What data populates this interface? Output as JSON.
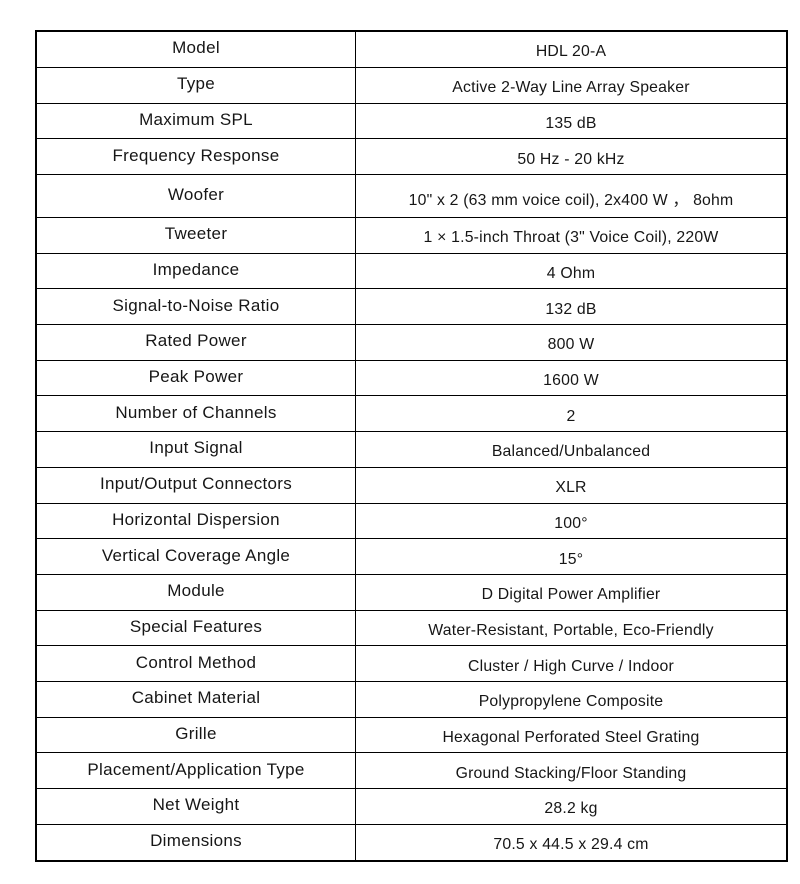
{
  "page": {
    "background": "#ffffff",
    "text_color": "#161616",
    "border_color": "#000000"
  },
  "table": {
    "columns": [
      "label",
      "value"
    ],
    "rows": [
      {
        "label": "Model",
        "value": "HDL 20-A"
      },
      {
        "label": "Type",
        "value": "Active 2-Way Line Array Speaker"
      },
      {
        "label": "Maximum SPL",
        "value": "135 dB"
      },
      {
        "label": "Frequency Response",
        "value": "50 Hz - 20 kHz"
      },
      {
        "label": "Woofer",
        "value": "10\" x 2 (63 mm voice coil), 2x400 W ， 8ohm"
      },
      {
        "label": "Tweeter",
        "value": "1 × 1.5-inch Throat (3\" Voice Coil), 220W"
      },
      {
        "label": "Impedance",
        "value": "4 Ohm"
      },
      {
        "label": "Signal-to-Noise Ratio",
        "value": "132 dB"
      },
      {
        "label": "Rated Power",
        "value": "800 W"
      },
      {
        "label": "Peak Power",
        "value": "1600 W"
      },
      {
        "label": "Number of Channels",
        "value": "2"
      },
      {
        "label": "Input Signal",
        "value": "Balanced/Unbalanced"
      },
      {
        "label": "Input/Output Connectors",
        "value": "XLR"
      },
      {
        "label": "Horizontal Dispersion",
        "value": "100°"
      },
      {
        "label": "Vertical Coverage Angle",
        "value": "15°"
      },
      {
        "label": "Module",
        "value": "D Digital Power Amplifier"
      },
      {
        "label": "Special Features",
        "value": "Water-Resistant, Portable, Eco-Friendly"
      },
      {
        "label": "Control Method",
        "value": "Cluster / High Curve / Indoor"
      },
      {
        "label": "Cabinet Material",
        "value": "Polypropylene Composite"
      },
      {
        "label": "Grille",
        "value": "Hexagonal Perforated Steel Grating"
      },
      {
        "label": "Placement/Application Type",
        "value": "Ground Stacking/Floor Standing"
      },
      {
        "label": "Net Weight",
        "value": "28.2 kg"
      },
      {
        "label": "Dimensions",
        "value": "70.5 x 44.5 x 29.4 cm"
      }
    ]
  }
}
